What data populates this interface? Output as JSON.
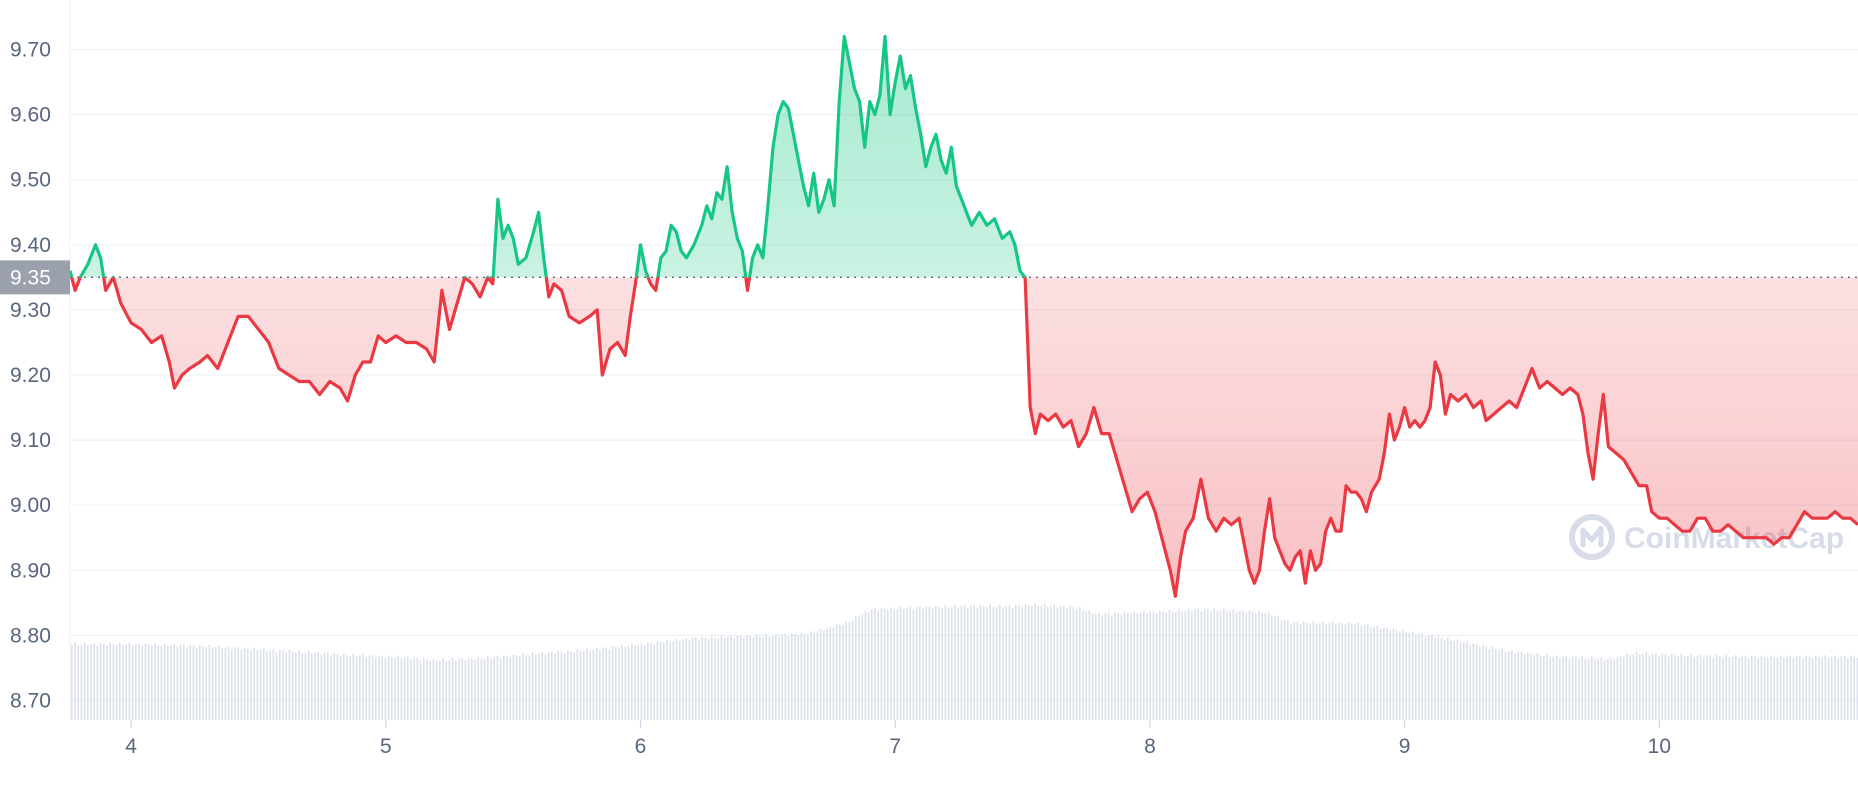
{
  "chart_data": {
    "type": "line",
    "title": "",
    "xlabel": "",
    "ylabel": "",
    "x_ticks": [
      "4",
      "5",
      "6",
      "7",
      "8",
      "9",
      "10"
    ],
    "x_range": [
      3.76,
      10.78
    ],
    "y_ticks": [
      "9.70",
      "9.60",
      "9.50",
      "9.40",
      "9.30",
      "9.20",
      "9.10",
      "9.00",
      "8.90",
      "8.80",
      "8.70"
    ],
    "ylim": [
      8.67,
      9.73
    ],
    "grid": "horizontal",
    "reference_value": 9.35,
    "reference_label": "9.35",
    "colors": {
      "above": "#16c784",
      "below": "#ea3943",
      "volume": "#cfd6e4",
      "grid": "#eff2f5",
      "axis_text": "#58667e",
      "ref_box": "#9aa1ad"
    },
    "watermark": "CoinMarketCap",
    "series": [
      {
        "values": [
          [
            3.76,
            9.36
          ],
          [
            3.78,
            9.33
          ],
          [
            3.8,
            9.35
          ],
          [
            3.83,
            9.37
          ],
          [
            3.86,
            9.4
          ],
          [
            3.88,
            9.38
          ],
          [
            3.9,
            9.33
          ],
          [
            3.93,
            9.35
          ],
          [
            3.96,
            9.31
          ],
          [
            4.0,
            9.28
          ],
          [
            4.04,
            9.27
          ],
          [
            4.08,
            9.25
          ],
          [
            4.12,
            9.26
          ],
          [
            4.15,
            9.22
          ],
          [
            4.17,
            9.18
          ],
          [
            4.2,
            9.2
          ],
          [
            4.23,
            9.21
          ],
          [
            4.27,
            9.22
          ],
          [
            4.3,
            9.23
          ],
          [
            4.34,
            9.21
          ],
          [
            4.38,
            9.25
          ],
          [
            4.42,
            9.29
          ],
          [
            4.46,
            9.29
          ],
          [
            4.5,
            9.27
          ],
          [
            4.54,
            9.25
          ],
          [
            4.58,
            9.21
          ],
          [
            4.62,
            9.2
          ],
          [
            4.66,
            9.19
          ],
          [
            4.7,
            9.19
          ],
          [
            4.74,
            9.17
          ],
          [
            4.78,
            9.19
          ],
          [
            4.82,
            9.18
          ],
          [
            4.85,
            9.16
          ],
          [
            4.88,
            9.2
          ],
          [
            4.91,
            9.22
          ],
          [
            4.94,
            9.22
          ],
          [
            4.97,
            9.26
          ],
          [
            5.0,
            9.25
          ],
          [
            5.04,
            9.26
          ],
          [
            5.08,
            9.25
          ],
          [
            5.12,
            9.25
          ],
          [
            5.16,
            9.24
          ],
          [
            5.19,
            9.22
          ],
          [
            5.22,
            9.33
          ],
          [
            5.25,
            9.27
          ],
          [
            5.28,
            9.31
          ],
          [
            5.31,
            9.35
          ],
          [
            5.34,
            9.34
          ],
          [
            5.37,
            9.32
          ],
          [
            5.4,
            9.35
          ],
          [
            5.42,
            9.34
          ],
          [
            5.44,
            9.47
          ],
          [
            5.46,
            9.41
          ],
          [
            5.48,
            9.43
          ],
          [
            5.5,
            9.41
          ],
          [
            5.52,
            9.37
          ],
          [
            5.55,
            9.38
          ],
          [
            5.58,
            9.42
          ],
          [
            5.6,
            9.45
          ],
          [
            5.62,
            9.38
          ],
          [
            5.64,
            9.32
          ],
          [
            5.66,
            9.34
          ],
          [
            5.69,
            9.33
          ],
          [
            5.72,
            9.29
          ],
          [
            5.76,
            9.28
          ],
          [
            5.8,
            9.29
          ],
          [
            5.83,
            9.3
          ],
          [
            5.85,
            9.2
          ],
          [
            5.88,
            9.24
          ],
          [
            5.91,
            9.25
          ],
          [
            5.94,
            9.23
          ],
          [
            5.96,
            9.29
          ],
          [
            5.98,
            9.34
          ],
          [
            6.0,
            9.4
          ],
          [
            6.02,
            9.36
          ],
          [
            6.04,
            9.34
          ],
          [
            6.06,
            9.33
          ],
          [
            6.08,
            9.38
          ],
          [
            6.1,
            9.39
          ],
          [
            6.12,
            9.43
          ],
          [
            6.14,
            9.42
          ],
          [
            6.16,
            9.39
          ],
          [
            6.18,
            9.38
          ],
          [
            6.21,
            9.4
          ],
          [
            6.24,
            9.43
          ],
          [
            6.26,
            9.46
          ],
          [
            6.28,
            9.44
          ],
          [
            6.3,
            9.48
          ],
          [
            6.32,
            9.47
          ],
          [
            6.34,
            9.52
          ],
          [
            6.36,
            9.45
          ],
          [
            6.38,
            9.41
          ],
          [
            6.4,
            9.39
          ],
          [
            6.42,
            9.33
          ],
          [
            6.44,
            9.38
          ],
          [
            6.46,
            9.4
          ],
          [
            6.48,
            9.38
          ],
          [
            6.5,
            9.46
          ],
          [
            6.52,
            9.55
          ],
          [
            6.54,
            9.6
          ],
          [
            6.56,
            9.62
          ],
          [
            6.58,
            9.61
          ],
          [
            6.6,
            9.57
          ],
          [
            6.62,
            9.53
          ],
          [
            6.64,
            9.49
          ],
          [
            6.66,
            9.46
          ],
          [
            6.68,
            9.51
          ],
          [
            6.7,
            9.45
          ],
          [
            6.72,
            9.47
          ],
          [
            6.74,
            9.5
          ],
          [
            6.76,
            9.46
          ],
          [
            6.78,
            9.62
          ],
          [
            6.8,
            9.72
          ],
          [
            6.82,
            9.68
          ],
          [
            6.84,
            9.64
          ],
          [
            6.86,
            9.62
          ],
          [
            6.88,
            9.55
          ],
          [
            6.9,
            9.62
          ],
          [
            6.92,
            9.6
          ],
          [
            6.94,
            9.63
          ],
          [
            6.96,
            9.72
          ],
          [
            6.98,
            9.6
          ],
          [
            7.0,
            9.65
          ],
          [
            7.02,
            9.69
          ],
          [
            7.04,
            9.64
          ],
          [
            7.06,
            9.66
          ],
          [
            7.08,
            9.61
          ],
          [
            7.1,
            9.57
          ],
          [
            7.12,
            9.52
          ],
          [
            7.14,
            9.55
          ],
          [
            7.16,
            9.57
          ],
          [
            7.18,
            9.53
          ],
          [
            7.2,
            9.51
          ],
          [
            7.22,
            9.55
          ],
          [
            7.24,
            9.49
          ],
          [
            7.26,
            9.47
          ],
          [
            7.28,
            9.45
          ],
          [
            7.3,
            9.43
          ],
          [
            7.33,
            9.45
          ],
          [
            7.36,
            9.43
          ],
          [
            7.39,
            9.44
          ],
          [
            7.42,
            9.41
          ],
          [
            7.45,
            9.42
          ],
          [
            7.47,
            9.4
          ],
          [
            7.49,
            9.36
          ],
          [
            7.51,
            9.35
          ],
          [
            7.52,
            9.25
          ],
          [
            7.53,
            9.15
          ],
          [
            7.55,
            9.11
          ],
          [
            7.57,
            9.14
          ],
          [
            7.6,
            9.13
          ],
          [
            7.63,
            9.14
          ],
          [
            7.66,
            9.12
          ],
          [
            7.69,
            9.13
          ],
          [
            7.72,
            9.09
          ],
          [
            7.75,
            9.11
          ],
          [
            7.78,
            9.15
          ],
          [
            7.81,
            9.11
          ],
          [
            7.84,
            9.11
          ],
          [
            7.87,
            9.07
          ],
          [
            7.9,
            9.03
          ],
          [
            7.93,
            8.99
          ],
          [
            7.96,
            9.01
          ],
          [
            7.99,
            9.02
          ],
          [
            8.02,
            8.99
          ],
          [
            8.04,
            8.96
          ],
          [
            8.06,
            8.93
          ],
          [
            8.08,
            8.9
          ],
          [
            8.1,
            8.86
          ],
          [
            8.12,
            8.92
          ],
          [
            8.14,
            8.96
          ],
          [
            8.17,
            8.98
          ],
          [
            8.2,
            9.04
          ],
          [
            8.23,
            8.98
          ],
          [
            8.26,
            8.96
          ],
          [
            8.29,
            8.98
          ],
          [
            8.32,
            8.97
          ],
          [
            8.35,
            8.98
          ],
          [
            8.37,
            8.94
          ],
          [
            8.39,
            8.9
          ],
          [
            8.41,
            8.88
          ],
          [
            8.43,
            8.9
          ],
          [
            8.45,
            8.96
          ],
          [
            8.47,
            9.01
          ],
          [
            8.49,
            8.95
          ],
          [
            8.51,
            8.93
          ],
          [
            8.53,
            8.91
          ],
          [
            8.55,
            8.9
          ],
          [
            8.57,
            8.92
          ],
          [
            8.59,
            8.93
          ],
          [
            8.61,
            8.88
          ],
          [
            8.63,
            8.93
          ],
          [
            8.65,
            8.9
          ],
          [
            8.67,
            8.91
          ],
          [
            8.69,
            8.96
          ],
          [
            8.71,
            8.98
          ],
          [
            8.73,
            8.96
          ],
          [
            8.75,
            8.96
          ],
          [
            8.77,
            9.03
          ],
          [
            8.79,
            9.02
          ],
          [
            8.81,
            9.02
          ],
          [
            8.83,
            9.01
          ],
          [
            8.85,
            8.99
          ],
          [
            8.87,
            9.02
          ],
          [
            8.9,
            9.04
          ],
          [
            8.92,
            9.08
          ],
          [
            8.94,
            9.14
          ],
          [
            8.96,
            9.1
          ],
          [
            8.98,
            9.12
          ],
          [
            9.0,
            9.15
          ],
          [
            9.02,
            9.12
          ],
          [
            9.04,
            9.13
          ],
          [
            9.06,
            9.12
          ],
          [
            9.08,
            9.13
          ],
          [
            9.1,
            9.15
          ],
          [
            9.12,
            9.22
          ],
          [
            9.14,
            9.2
          ],
          [
            9.16,
            9.14
          ],
          [
            9.18,
            9.17
          ],
          [
            9.21,
            9.16
          ],
          [
            9.24,
            9.17
          ],
          [
            9.27,
            9.15
          ],
          [
            9.3,
            9.16
          ],
          [
            9.32,
            9.13
          ],
          [
            9.35,
            9.14
          ],
          [
            9.38,
            9.15
          ],
          [
            9.41,
            9.16
          ],
          [
            9.44,
            9.15
          ],
          [
            9.47,
            9.18
          ],
          [
            9.5,
            9.21
          ],
          [
            9.53,
            9.18
          ],
          [
            9.56,
            9.19
          ],
          [
            9.59,
            9.18
          ],
          [
            9.62,
            9.17
          ],
          [
            9.65,
            9.18
          ],
          [
            9.68,
            9.17
          ],
          [
            9.7,
            9.14
          ],
          [
            9.72,
            9.08
          ],
          [
            9.74,
            9.04
          ],
          [
            9.76,
            9.11
          ],
          [
            9.78,
            9.17
          ],
          [
            9.8,
            9.09
          ],
          [
            9.83,
            9.08
          ],
          [
            9.86,
            9.07
          ],
          [
            9.89,
            9.05
          ],
          [
            9.92,
            9.03
          ],
          [
            9.95,
            9.03
          ],
          [
            9.97,
            8.99
          ],
          [
            10.0,
            8.98
          ],
          [
            10.03,
            8.98
          ],
          [
            10.06,
            8.97
          ],
          [
            10.09,
            8.96
          ],
          [
            10.12,
            8.96
          ],
          [
            10.15,
            8.98
          ],
          [
            10.18,
            8.98
          ],
          [
            10.21,
            8.96
          ],
          [
            10.24,
            8.96
          ],
          [
            10.27,
            8.97
          ],
          [
            10.3,
            8.96
          ],
          [
            10.33,
            8.95
          ],
          [
            10.36,
            8.95
          ],
          [
            10.39,
            8.95
          ],
          [
            10.42,
            8.95
          ],
          [
            10.45,
            8.94
          ],
          [
            10.48,
            8.95
          ],
          [
            10.51,
            8.95
          ],
          [
            10.54,
            8.97
          ],
          [
            10.57,
            8.99
          ],
          [
            10.6,
            8.98
          ],
          [
            10.63,
            8.98
          ],
          [
            10.66,
            8.98
          ],
          [
            10.69,
            8.99
          ],
          [
            10.72,
            8.98
          ],
          [
            10.75,
            8.98
          ],
          [
            10.78,
            8.97
          ]
        ]
      }
    ],
    "volume_relative": [
      [
        3.76,
        0.66
      ],
      [
        4.0,
        0.66
      ],
      [
        4.3,
        0.64
      ],
      [
        4.6,
        0.6
      ],
      [
        4.9,
        0.56
      ],
      [
        5.1,
        0.54
      ],
      [
        5.2,
        0.52
      ],
      [
        5.4,
        0.54
      ],
      [
        5.6,
        0.58
      ],
      [
        5.8,
        0.61
      ],
      [
        6.0,
        0.66
      ],
      [
        6.2,
        0.71
      ],
      [
        6.45,
        0.73
      ],
      [
        6.65,
        0.75
      ],
      [
        6.8,
        0.84
      ],
      [
        6.9,
        0.96
      ],
      [
        7.1,
        0.98
      ],
      [
        7.3,
        0.99
      ],
      [
        7.45,
        0.99
      ],
      [
        7.55,
        1.0
      ],
      [
        7.7,
        0.98
      ],
      [
        7.8,
        0.92
      ],
      [
        8.0,
        0.94
      ],
      [
        8.2,
        0.96
      ],
      [
        8.45,
        0.94
      ],
      [
        8.55,
        0.85
      ],
      [
        8.8,
        0.84
      ],
      [
        9.0,
        0.77
      ],
      [
        9.2,
        0.69
      ],
      [
        9.4,
        0.6
      ],
      [
        9.6,
        0.55
      ],
      [
        9.8,
        0.53
      ],
      [
        9.9,
        0.58
      ],
      [
        10.1,
        0.56
      ],
      [
        10.4,
        0.55
      ],
      [
        10.78,
        0.55
      ]
    ]
  }
}
